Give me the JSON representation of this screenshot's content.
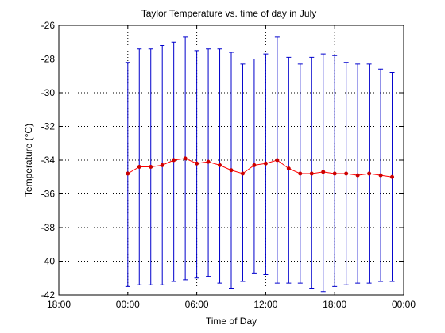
{
  "chart_data": {
    "type": "line",
    "title": "Taylor Temperature vs. time of day in July",
    "xlabel": "Time of Day",
    "ylabel": "Temperature (°C)",
    "ylim": [
      -42,
      -26
    ],
    "xlim_hours": [
      -6,
      24
    ],
    "grid": true,
    "x_ticks": [
      "18:00",
      "00:00",
      "06:00",
      "12:00",
      "18:00",
      "00:00"
    ],
    "y_ticks": [
      "-26",
      "-28",
      "-30",
      "-32",
      "-34",
      "-36",
      "-38",
      "-40",
      "-42"
    ],
    "colors": {
      "mean_line": "#ff0000",
      "error_bars": "#0000cc",
      "markers": "#cc0000"
    },
    "series": [
      {
        "x_hours": [
          0,
          1,
          2,
          3,
          4,
          5,
          6,
          7,
          8,
          9,
          10,
          11,
          12,
          13,
          14,
          15,
          16,
          17,
          18,
          19,
          20,
          21,
          22,
          23
        ],
        "values": [
          -34.8,
          -34.4,
          -34.4,
          -34.3,
          -34.0,
          -33.9,
          -34.2,
          -34.1,
          -34.3,
          -34.6,
          -34.8,
          -34.3,
          -34.2,
          -34.0,
          -34.5,
          -34.8,
          -34.8,
          -34.7,
          -34.8,
          -34.8,
          -34.9,
          -34.8,
          -34.9,
          -35.0
        ],
        "upper": [
          -28.2,
          -27.4,
          -27.4,
          -27.2,
          -27.0,
          -26.7,
          -27.5,
          -27.4,
          -27.4,
          -27.6,
          -28.3,
          -28.0,
          -27.7,
          -26.7,
          -27.9,
          -28.3,
          -27.9,
          -27.7,
          -27.8,
          -28.2,
          -28.3,
          -28.3,
          -28.6,
          -28.8
        ],
        "lower": [
          -41.5,
          -41.4,
          -41.4,
          -41.4,
          -41.2,
          -41.1,
          -41.0,
          -40.9,
          -41.3,
          -41.6,
          -41.2,
          -40.7,
          -40.8,
          -41.3,
          -41.3,
          -41.3,
          -41.6,
          -41.8,
          -41.5,
          -41.4,
          -41.3,
          -41.3,
          -41.2,
          -41.2
        ]
      }
    ]
  }
}
